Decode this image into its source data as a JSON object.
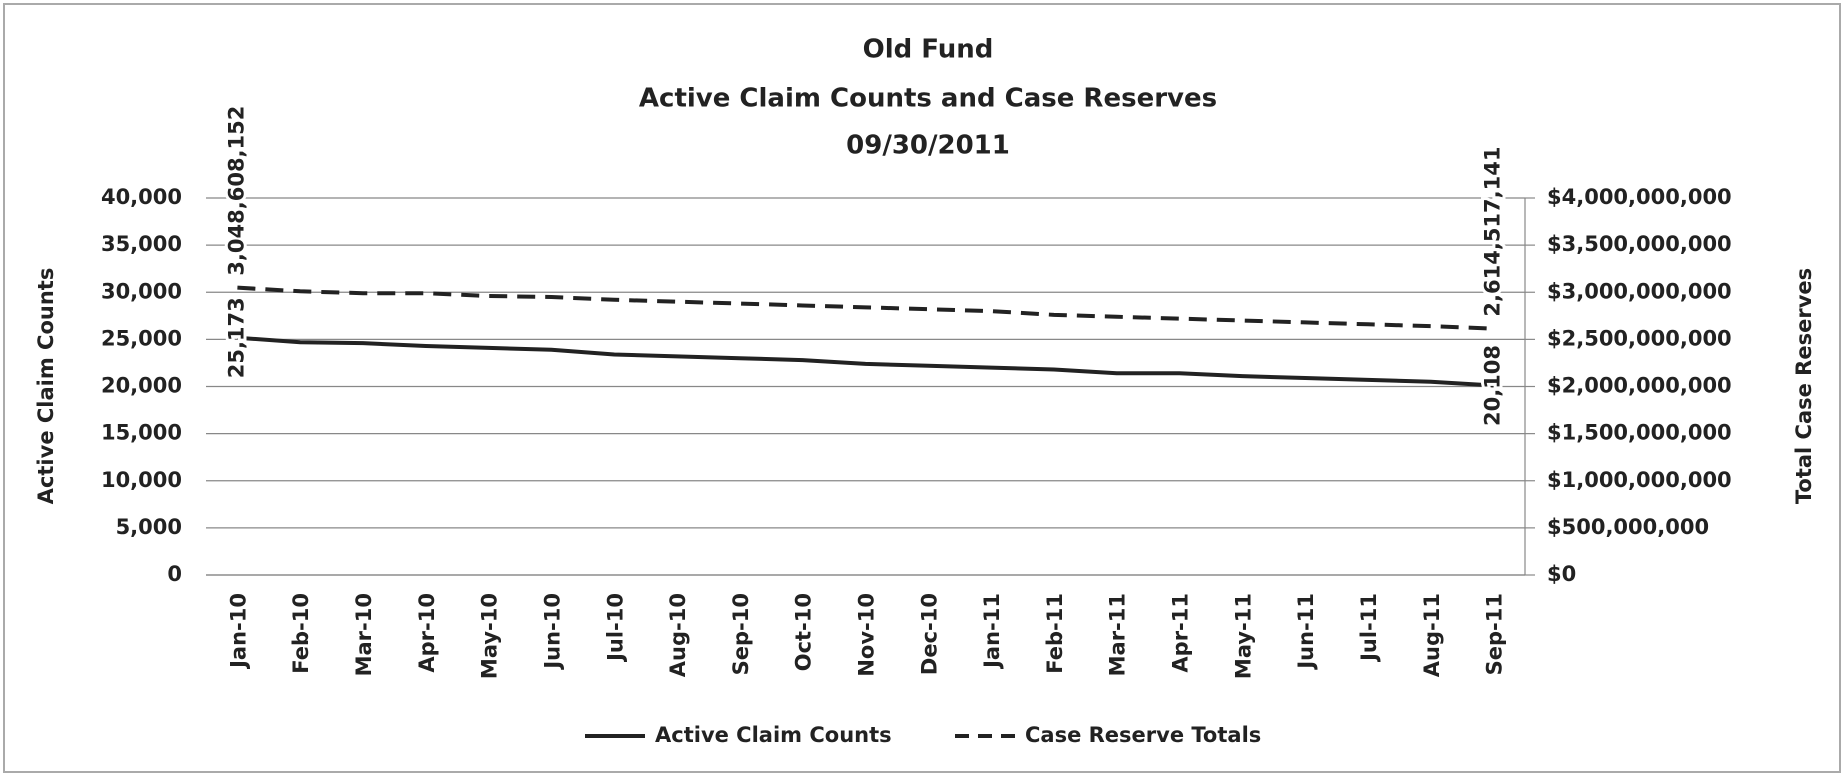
{
  "chart_data": {
    "type": "line",
    "title": [
      "Old Fund",
      "Active Claim Counts and Case Reserves",
      "09/30/2011"
    ],
    "y_label": "Active Claim Counts",
    "y2_label": "Total Case Reserves",
    "categories": [
      "Jan-10",
      "Feb-10",
      "Mar-10",
      "Apr-10",
      "May-10",
      "Jun-10",
      "Jul-10",
      "Aug-10",
      "Sep-10",
      "Oct-10",
      "Nov-10",
      "Dec-10",
      "Jan-11",
      "Feb-11",
      "Mar-11",
      "Apr-11",
      "May-11",
      "Jun-11",
      "Jul-11",
      "Aug-11",
      "Sep-11"
    ],
    "series": [
      {
        "name": "Active Claim Counts",
        "color": "#222222",
        "dash": false,
        "values": [
          25173,
          24700,
          24600,
          24300,
          24100,
          23900,
          23400,
          23200,
          23000,
          22800,
          22400,
          22200,
          22000,
          21800,
          21400,
          21400,
          21100,
          20900,
          20700,
          20500,
          20108
        ],
        "value_labels": [
          "25,173",
          null,
          null,
          null,
          null,
          null,
          null,
          null,
          null,
          null,
          null,
          null,
          null,
          null,
          null,
          null,
          null,
          null,
          null,
          null,
          "20,108"
        ]
      },
      {
        "name": "Case Reserve Totals",
        "color": "#222222",
        "dash": true,
        "axis": "y2",
        "values": [
          3048608152,
          3010000000,
          2990000000,
          2990000000,
          2960000000,
          2950000000,
          2920000000,
          2900000000,
          2880000000,
          2860000000,
          2840000000,
          2820000000,
          2800000000,
          2760000000,
          2740000000,
          2720000000,
          2700000000,
          2680000000,
          2660000000,
          2640000000,
          2614517141
        ],
        "value_labels": [
          "3,048,608,152",
          null,
          null,
          null,
          null,
          null,
          null,
          null,
          null,
          null,
          null,
          null,
          null,
          null,
          null,
          null,
          null,
          null,
          null,
          null,
          "2,614,517,141"
        ]
      }
    ],
    "ylim": [
      0,
      40000
    ],
    "yticks": [
      0,
      {
        "value": 5000,
        "label": "5,000"
      },
      {
        "value": 10000,
        "label": "10,000"
      },
      {
        "value": 15000,
        "label": "15,000"
      },
      {
        "value": 20000,
        "label": "20,000"
      },
      {
        "value": 25000,
        "label": "25,000"
      },
      {
        "value": 30000,
        "label": "30,000"
      },
      {
        "value": 35000,
        "label": "35,000"
      },
      {
        "value": 40000,
        "label": "40,000"
      }
    ],
    "y2lim": [
      0,
      4000000000
    ],
    "y2ticks": [
      {
        "value": 0,
        "label": "$0"
      },
      {
        "value": 500000000,
        "label": "$500,000,000"
      },
      {
        "value": 1000000000,
        "label": "$1,000,000,000"
      },
      {
        "value": 1500000000,
        "label": "$1,500,000,000"
      },
      {
        "value": 2000000000,
        "label": "$2,000,000,000"
      },
      {
        "value": 2500000000,
        "label": "$2,500,000,000"
      },
      {
        "value": 3000000000,
        "label": "$3,000,000,000"
      },
      {
        "value": 3500000000,
        "label": "$3,500,000,000"
      },
      {
        "value": 4000000000,
        "label": "$4,000,000,000"
      }
    ],
    "grid": true,
    "legend": "bottom"
  }
}
